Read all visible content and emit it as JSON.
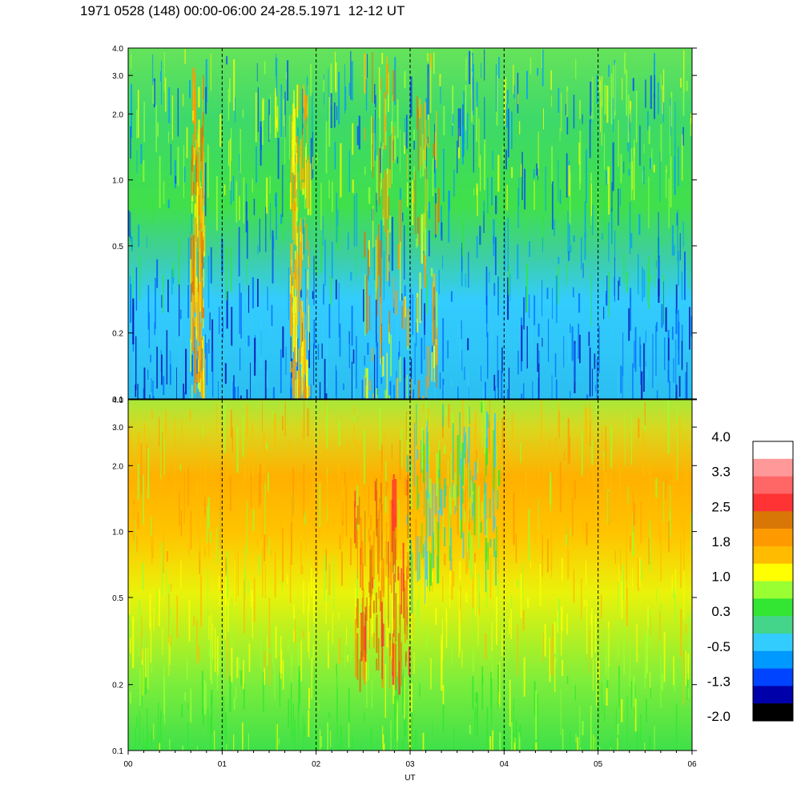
{
  "title": "1971 0528 (148) 00:00-06:00 24-28.5.1971  12-12 UT",
  "chart_data": {
    "type": "heatmap",
    "xlabel": "UT",
    "x_ticks": [
      "00",
      "01",
      "02",
      "03",
      "04",
      "05",
      "06"
    ],
    "xlim": [
      0,
      6
    ],
    "panels": [
      {
        "name": "",
        "y_scale": "log",
        "ylim": [
          0.1,
          4.0
        ],
        "y_ticks": [
          "0.1",
          "0.2",
          "0.5",
          "1.0",
          "2.0",
          "3.0",
          "4.0"
        ],
        "description_values": "mostly blue/cyan below 0.5, green above; orange-red bursts near 00:40, 01:45, 02:40-03:20"
      },
      {
        "name": "",
        "y_scale": "log",
        "ylim": [
          0.1,
          4.0
        ],
        "y_ticks": [
          "0.1",
          "0.2",
          "0.5",
          "1.0",
          "2.0",
          "3.0",
          "4.0"
        ],
        "description_values": "green near 0.1, yellow mid, orange near 1.0-3.0; cyan depression near 03:00-04:00 above 1.0"
      }
    ],
    "grid": "dashed vertical lines at each hour",
    "colorbar": {
      "labels": [
        "4.0",
        "3.3",
        "2.5",
        "1.8",
        "1.0",
        "0.3",
        "-0.5",
        "-1.3",
        "-2.0"
      ],
      "colors": [
        "#ffffff",
        "#ff9999",
        "#ff6666",
        "#ff3333",
        "#d97706",
        "#ff9900",
        "#ffbb00",
        "#ffff00",
        "#99ff33",
        "#33e633",
        "#44d48a",
        "#33ccff",
        "#0099ff",
        "#0044ff",
        "#0000aa",
        "#000000"
      ]
    }
  }
}
